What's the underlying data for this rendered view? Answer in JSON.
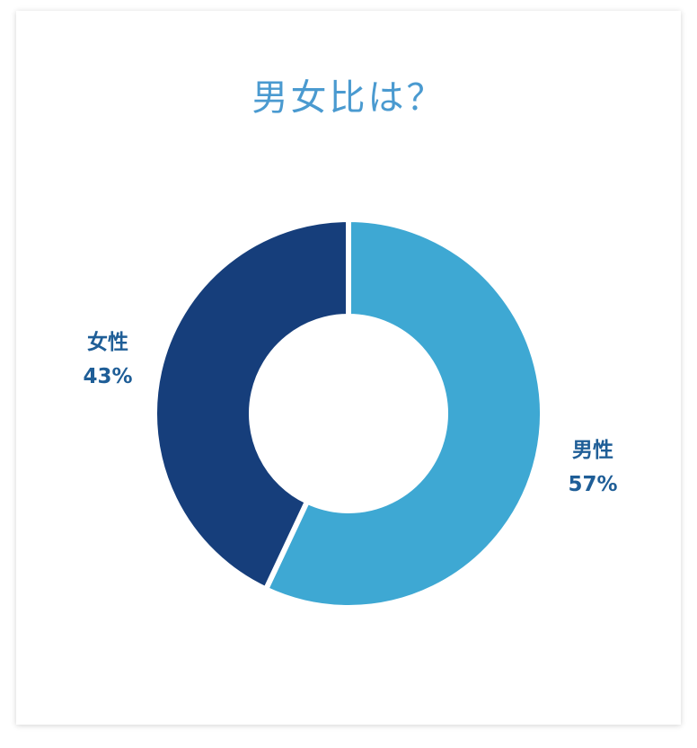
{
  "chart_data": {
    "type": "pie",
    "title": "男女比は？",
    "slices": [
      {
        "label": "男性",
        "value": 57,
        "value_label": "57%",
        "color": "#3ea8d3"
      },
      {
        "label": "女性",
        "value": 43,
        "value_label": "43%",
        "color": "#163e7b"
      }
    ],
    "donut": true
  }
}
